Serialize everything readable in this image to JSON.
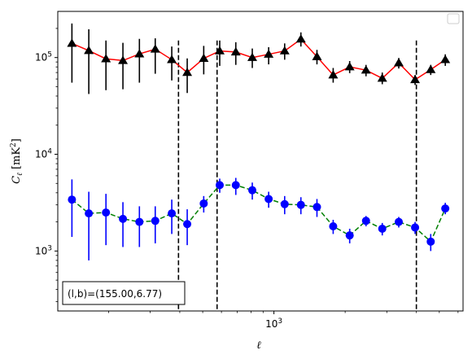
{
  "chart_data": {
    "type": "scatter",
    "title": "",
    "xlabel": "ℓ",
    "ylabel": "C_ℓ [mK²]",
    "xscale": "log",
    "yscale": "log",
    "xlim": [
      122,
      6300
    ],
    "ylim": [
      240,
      300000
    ],
    "x_tick_labels": [
      {
        "value": 1000,
        "base": "10",
        "exp": "3"
      }
    ],
    "y_tick_labels": [
      {
        "value": 1000,
        "base": "10",
        "exp": "3"
      },
      {
        "value": 10000,
        "base": "10",
        "exp": "4"
      },
      {
        "value": 100000,
        "base": "10",
        "exp": "5"
      }
    ],
    "vlines": [
      395,
      575,
      4000
    ],
    "legend": {
      "placement": "top-right",
      "entries": []
    },
    "annotation": {
      "text": "(l,b)=(155.00,6.77)",
      "placement": "bottom-left"
    },
    "series": [
      {
        "marker": "triangle",
        "color": "#000000",
        "line_color": "#ff0000",
        "line_style": "solid",
        "x": [
          140,
          165,
          195,
          230,
          270,
          315,
          370,
          430,
          505,
          590,
          690,
          810,
          950,
          1110,
          1300,
          1520,
          1780,
          2090,
          2450,
          2870,
          3370,
          3950,
          4600,
          5300
        ],
        "y": [
          140000,
          118000,
          97000,
          93000,
          109000,
          122000,
          95000,
          70000,
          98000,
          117000,
          114000,
          100000,
          108000,
          117000,
          155000,
          102000,
          66000,
          80000,
          74000,
          61000,
          88000,
          59000,
          75000,
          95000
        ],
        "y_low": [
          55000,
          42000,
          46000,
          47000,
          55000,
          68000,
          58000,
          43000,
          67000,
          82000,
          84000,
          78000,
          85000,
          95000,
          130000,
          85000,
          55000,
          69000,
          64000,
          53000,
          77000,
          52000,
          66000,
          82000
        ],
        "y_high": [
          225000,
          196000,
          150000,
          142000,
          156000,
          158000,
          130000,
          98000,
          132000,
          150000,
          144000,
          124000,
          128000,
          140000,
          182000,
          120000,
          78000,
          92000,
          84000,
          70000,
          99000,
          66000,
          84000,
          108000
        ]
      },
      {
        "marker": "circle",
        "color": "#0000ff",
        "line_color": "#008000",
        "line_style": "dashed",
        "x": [
          140,
          165,
          195,
          230,
          270,
          315,
          370,
          430,
          505,
          590,
          690,
          810,
          950,
          1110,
          1300,
          1520,
          1780,
          2090,
          2450,
          2870,
          3370,
          3950,
          4600,
          5300
        ],
        "y": [
          3400,
          2450,
          2500,
          2150,
          2000,
          2050,
          2450,
          1900,
          3100,
          4800,
          4800,
          4250,
          3450,
          3050,
          3000,
          2850,
          1800,
          1450,
          2050,
          1700,
          2000,
          1750,
          1250,
          2750
        ],
        "y_low": [
          1400,
          800,
          1150,
          1100,
          1100,
          1200,
          1500,
          1150,
          2500,
          4000,
          3800,
          3400,
          2800,
          2400,
          2400,
          2250,
          1500,
          1200,
          1800,
          1450,
          1750,
          1500,
          1000,
          2400
        ],
        "y_high": [
          5500,
          4100,
          3900,
          3200,
          2900,
          2900,
          3400,
          2700,
          3700,
          5600,
          5700,
          5100,
          4100,
          3700,
          3600,
          3450,
          2100,
          1700,
          2300,
          1950,
          2250,
          2000,
          1500,
          3150
        ]
      }
    ]
  }
}
